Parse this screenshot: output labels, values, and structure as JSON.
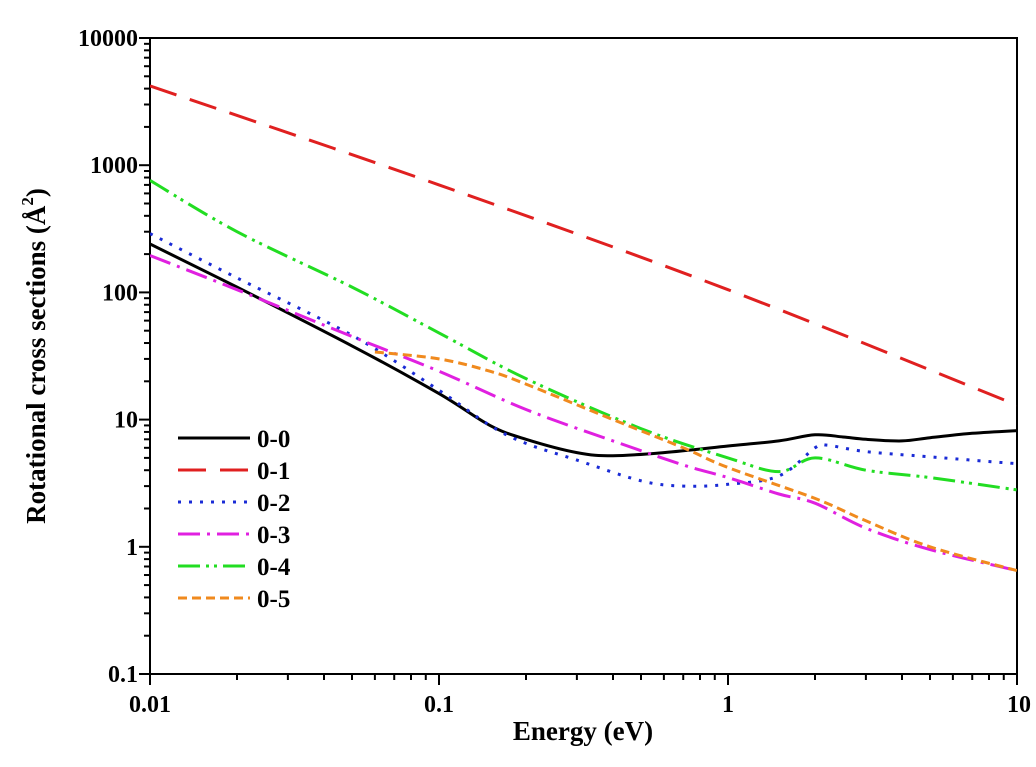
{
  "chart_data": {
    "type": "line",
    "xlabel": "Energy (eV)",
    "ylabel_prefix": "Rotational cross sections (",
    "ylabel_unit": "Å",
    "ylabel_exp": "2",
    "ylabel_suffix": ")",
    "x_scale": "log",
    "y_scale": "log",
    "xlim": [
      0.01,
      10
    ],
    "ylim": [
      0.1,
      10000
    ],
    "x_ticks": [
      {
        "value": 0.01,
        "label": "0.01"
      },
      {
        "value": 0.1,
        "label": "0.1"
      },
      {
        "value": 1,
        "label": "1"
      },
      {
        "value": 10,
        "label": "10"
      }
    ],
    "y_ticks": [
      {
        "value": 0.1,
        "label": "0.1"
      },
      {
        "value": 1,
        "label": "1"
      },
      {
        "value": 10,
        "label": "10"
      },
      {
        "value": 100,
        "label": "100"
      },
      {
        "value": 1000,
        "label": "1000"
      },
      {
        "value": 10000,
        "label": "10000"
      }
    ],
    "grid": false,
    "legend_position": "bottom-left",
    "series": [
      {
        "name": "0-0",
        "color": "#000000",
        "dash": "none",
        "points": [
          [
            0.01,
            240
          ],
          [
            0.02,
            110
          ],
          [
            0.05,
            38
          ],
          [
            0.1,
            16
          ],
          [
            0.15,
            9
          ],
          [
            0.2,
            7
          ],
          [
            0.3,
            5.5
          ],
          [
            0.4,
            5.2
          ],
          [
            0.6,
            5.5
          ],
          [
            1,
            6.2
          ],
          [
            1.5,
            6.8
          ],
          [
            2,
            7.6
          ],
          [
            2.5,
            7.3
          ],
          [
            3,
            7.0
          ],
          [
            4,
            6.8
          ],
          [
            5,
            7.2
          ],
          [
            7,
            7.8
          ],
          [
            10,
            8.2
          ]
        ]
      },
      {
        "name": "0-1",
        "color": "#e02020",
        "dash": "28,14",
        "points": [
          [
            0.01,
            4200
          ],
          [
            0.1,
            700
          ],
          [
            1,
            105
          ],
          [
            10,
            13
          ]
        ]
      },
      {
        "name": "0-2",
        "color": "#1a2bd6",
        "dash": "3,8",
        "points": [
          [
            0.01,
            290
          ],
          [
            0.02,
            130
          ],
          [
            0.05,
            46
          ],
          [
            0.1,
            17
          ],
          [
            0.15,
            9
          ],
          [
            0.2,
            6.5
          ],
          [
            0.3,
            4.8
          ],
          [
            0.5,
            3.3
          ],
          [
            0.7,
            3.0
          ],
          [
            1,
            3.1
          ],
          [
            1.5,
            3.6
          ],
          [
            2,
            6.0
          ],
          [
            2.2,
            6.3
          ],
          [
            3,
            5.6
          ],
          [
            5,
            5.1
          ],
          [
            10,
            4.5
          ]
        ]
      },
      {
        "name": "0-3",
        "color": "#e020e0",
        "dash": "22,7,3,7",
        "points": [
          [
            0.01,
            195
          ],
          [
            0.02,
            105
          ],
          [
            0.05,
            45
          ],
          [
            0.1,
            24
          ],
          [
            0.2,
            12
          ],
          [
            0.4,
            6.8
          ],
          [
            0.7,
            4.4
          ],
          [
            1,
            3.5
          ],
          [
            1.5,
            2.6
          ],
          [
            2,
            2.2
          ],
          [
            3,
            1.4
          ],
          [
            5,
            0.95
          ],
          [
            10,
            0.65
          ]
        ]
      },
      {
        "name": "0-4",
        "color": "#22dd22",
        "dash": "22,6,3,5,3,6",
        "points": [
          [
            0.01,
            760
          ],
          [
            0.02,
            300
          ],
          [
            0.05,
            110
          ],
          [
            0.1,
            48
          ],
          [
            0.2,
            21
          ],
          [
            0.5,
            8.5
          ],
          [
            1,
            5.0
          ],
          [
            1.5,
            3.9
          ],
          [
            2,
            5.0
          ],
          [
            3,
            4.0
          ],
          [
            5,
            3.5
          ],
          [
            10,
            2.8
          ]
        ]
      },
      {
        "name": "0-5",
        "color": "#f08a1e",
        "dash": "9,5",
        "points": [
          [
            0.06,
            34
          ],
          [
            0.1,
            30
          ],
          [
            0.15,
            24
          ],
          [
            0.2,
            19
          ],
          [
            0.4,
            10
          ],
          [
            0.7,
            6
          ],
          [
            1,
            4.2
          ],
          [
            2,
            2.4
          ],
          [
            3,
            1.6
          ],
          [
            5,
            1.0
          ],
          [
            10,
            0.65
          ]
        ]
      }
    ]
  }
}
